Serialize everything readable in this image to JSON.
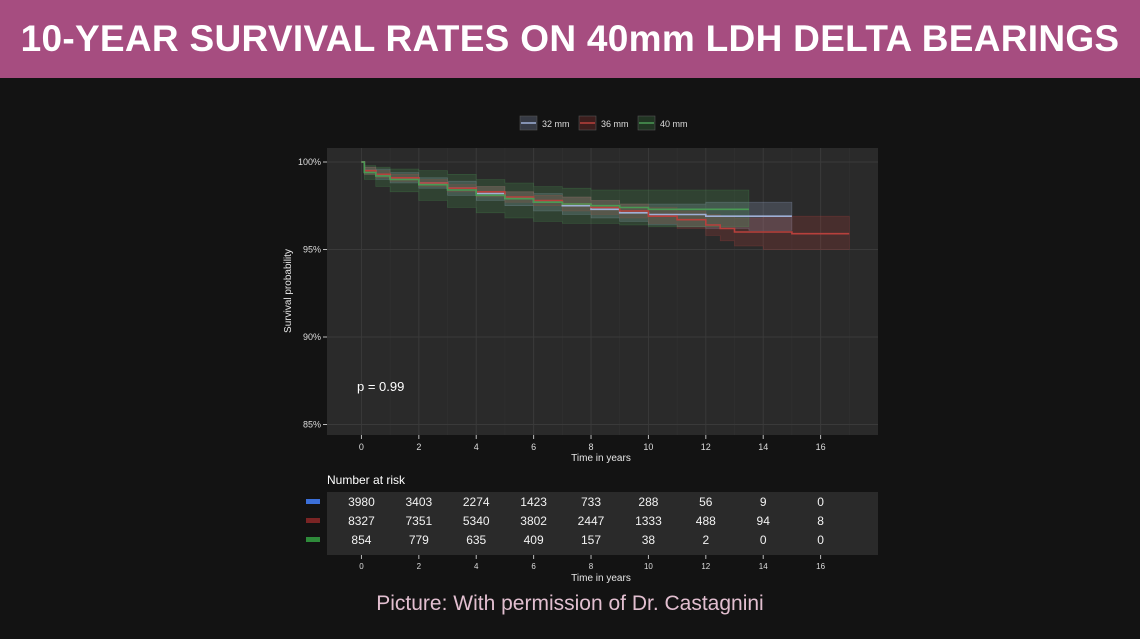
{
  "banner": {
    "title": "10-YEAR SURVIVAL RATES ON 40mm LDH DELTA BEARINGS",
    "color": "#a64d80"
  },
  "caption": "Picture: With permission of Dr. Castagnini",
  "chart_data": {
    "type": "line",
    "title": "",
    "xlabel": "Time in years",
    "ylabel": "Survival probability",
    "xlim": [
      -1.2,
      18
    ],
    "ylim": [
      84.4,
      100.8
    ],
    "x_ticks": [
      0,
      2,
      4,
      6,
      8,
      10,
      12,
      14,
      16
    ],
    "y_ticks": [
      85,
      90,
      95,
      100
    ],
    "y_tick_labels": [
      "85%",
      "90%",
      "95%",
      "100%"
    ],
    "grid": true,
    "legend_position": "top",
    "annotation": "p = 0.99",
    "series": [
      {
        "name": "32 mm",
        "color": "#9fb0d6",
        "x": [
          0,
          0.1,
          0.5,
          1,
          2,
          3,
          4,
          5,
          6,
          7,
          8,
          9,
          10,
          11,
          12,
          13.5,
          15
        ],
        "y": [
          100,
          99.5,
          99.3,
          99.1,
          98.8,
          98.5,
          98.2,
          97.9,
          97.7,
          97.5,
          97.3,
          97.1,
          97.0,
          97.0,
          96.9,
          96.9,
          96.9
        ],
        "lower": [
          100,
          99.3,
          99.0,
          98.8,
          98.5,
          98.1,
          97.8,
          97.5,
          97.2,
          97.0,
          96.8,
          96.6,
          96.4,
          96.3,
          96.2,
          96.1,
          96.1
        ],
        "upper": [
          100,
          99.7,
          99.6,
          99.4,
          99.1,
          98.9,
          98.6,
          98.3,
          98.2,
          98.0,
          97.8,
          97.6,
          97.6,
          97.6,
          97.7,
          97.7,
          97.7
        ]
      },
      {
        "name": "36 mm",
        "color": "#b8403c",
        "x": [
          0,
          0.1,
          0.5,
          1,
          2,
          3,
          4,
          5,
          6,
          7,
          8,
          9,
          10,
          11,
          12,
          12.5,
          13,
          14,
          15,
          16,
          17
        ],
        "y": [
          100,
          99.5,
          99.3,
          99.1,
          98.8,
          98.5,
          98.3,
          98.0,
          97.8,
          97.6,
          97.4,
          97.2,
          96.9,
          96.7,
          96.4,
          96.2,
          96.0,
          96.0,
          95.9,
          95.9,
          95.9
        ],
        "lower": [
          100,
          99.3,
          99.1,
          98.9,
          98.6,
          98.3,
          98.0,
          97.7,
          97.5,
          97.2,
          97.0,
          96.8,
          96.5,
          96.2,
          95.8,
          95.5,
          95.2,
          95.0,
          95.0,
          95.0,
          95.0
        ],
        "upper": [
          100,
          99.7,
          99.5,
          99.3,
          99.0,
          98.7,
          98.6,
          98.3,
          98.1,
          98.0,
          97.8,
          97.6,
          97.4,
          97.2,
          97.0,
          96.9,
          96.8,
          96.9,
          96.9,
          96.9,
          96.9
        ]
      },
      {
        "name": "40 mm",
        "color": "#4a9a54",
        "x": [
          0,
          0.1,
          0.5,
          1,
          2,
          3,
          4,
          5,
          6,
          7,
          8,
          9,
          10,
          11,
          12,
          13.5
        ],
        "y": [
          100,
          99.4,
          99.2,
          99.0,
          98.7,
          98.4,
          98.1,
          97.9,
          97.7,
          97.6,
          97.5,
          97.4,
          97.3,
          97.3,
          97.3,
          97.3
        ],
        "lower": [
          100,
          99.0,
          98.6,
          98.3,
          97.8,
          97.4,
          97.1,
          96.8,
          96.6,
          96.5,
          96.5,
          96.4,
          96.3,
          96.3,
          96.3,
          96.3
        ],
        "upper": [
          100,
          99.8,
          99.7,
          99.6,
          99.5,
          99.3,
          99.0,
          98.8,
          98.6,
          98.5,
          98.4,
          98.4,
          98.4,
          98.4,
          98.4,
          98.4
        ]
      }
    ],
    "risk_table": {
      "title": "Number at risk",
      "times": [
        0,
        2,
        4,
        6,
        8,
        10,
        12,
        14,
        16
      ],
      "rows": [
        {
          "name": "32 mm",
          "color": "#3b6fd8",
          "values": [
            "3980",
            "3403",
            "2274",
            "1423",
            "733",
            "288",
            "56",
            "9",
            "0"
          ]
        },
        {
          "name": "36 mm",
          "color": "#7a2424",
          "values": [
            "8327",
            "7351",
            "5340",
            "3802",
            "2447",
            "1333",
            "488",
            "94",
            "8"
          ]
        },
        {
          "name": "40 mm",
          "color": "#2e8a3a",
          "values": [
            "854",
            "779",
            "635",
            "409",
            "157",
            "38",
            "2",
            "0",
            "0"
          ]
        }
      ],
      "xlabel": "Time in years"
    }
  }
}
